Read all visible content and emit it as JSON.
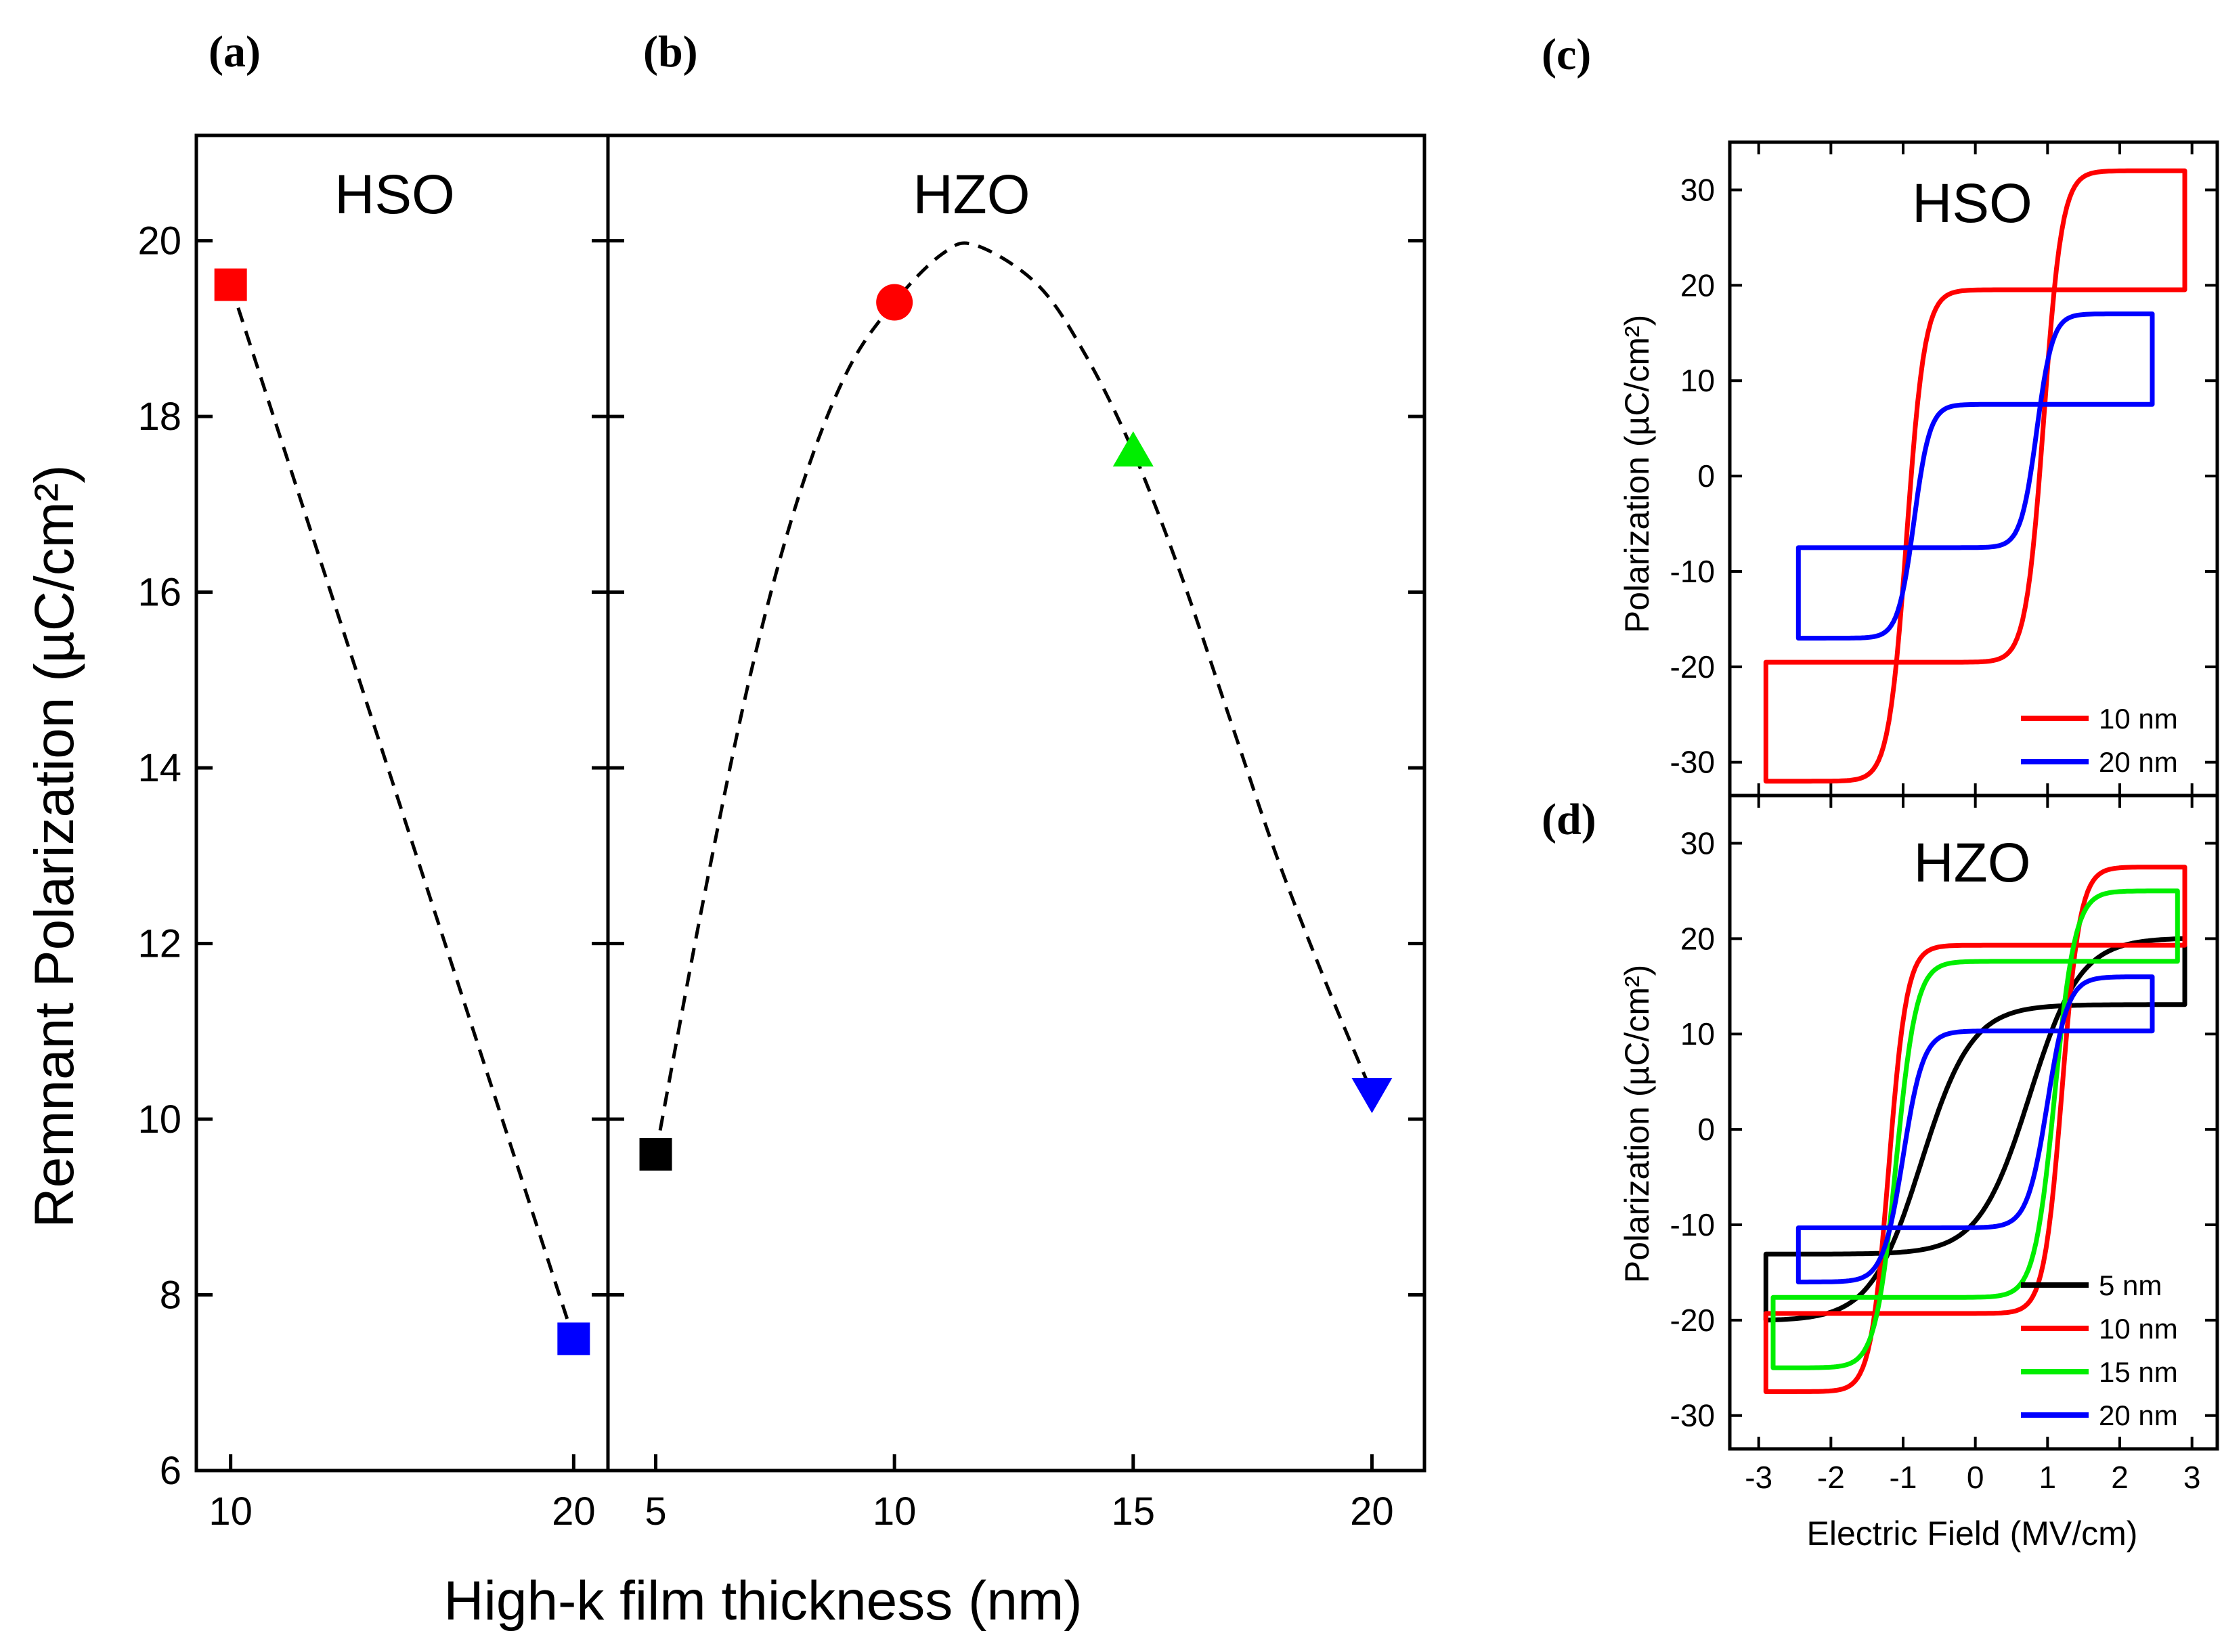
{
  "chart_data": [
    {
      "panel_label": "(a)",
      "type": "scatter",
      "title": "HSO",
      "x": [
        10,
        20
      ],
      "y": [
        19.5,
        7.5
      ],
      "marker_colors": [
        "#ff0000",
        "#0000ff"
      ],
      "marker_shapes": [
        "square",
        "square"
      ],
      "fit_curve": {
        "style": "dashed",
        "x": [
          10,
          20
        ],
        "y": [
          19.5,
          7.5
        ]
      },
      "ylabel": "Remnant Polarization (µC/cm²)",
      "xlabel": "High-k film thickness (nm)",
      "ylim": [
        6,
        21.2
      ],
      "xlim": [
        9,
        21
      ],
      "xticks": [
        "10",
        "20"
      ],
      "yticks": [
        "6",
        "8",
        "10",
        "12",
        "14",
        "16",
        "18",
        "20"
      ]
    },
    {
      "panel_label": "(b)",
      "type": "scatter",
      "title": "HZO",
      "x": [
        5,
        10,
        15,
        20
      ],
      "y": [
        9.6,
        19.3,
        17.6,
        10.3
      ],
      "marker_colors": [
        "#000000",
        "#ff0000",
        "#00ee00",
        "#0000ff"
      ],
      "marker_shapes": [
        "square",
        "circle",
        "triangle-up",
        "triangle-down"
      ],
      "fit_curve": {
        "style": "dashed",
        "x": [
          5,
          6,
          7,
          8,
          9,
          10,
          11,
          11.7,
          13,
          14,
          15,
          16,
          17,
          18,
          19,
          20
        ],
        "y": [
          9.6,
          12.5,
          15.1,
          17.1,
          18.5,
          19.3,
          19.85,
          19.95,
          19.5,
          18.7,
          17.6,
          16.2,
          14.6,
          13.0,
          11.6,
          10.3
        ]
      },
      "xlabel": "High-k film thickness (nm)",
      "ylim": [
        6,
        21.2
      ],
      "xlim": [
        4,
        21.1
      ],
      "xticks": [
        "5",
        "10",
        "15",
        "20"
      ]
    },
    {
      "panel_label": "(c)",
      "type": "line",
      "title": "HSO",
      "ylabel": "Polarization (µC/cm²)",
      "xlim": [
        -3.4,
        3.35
      ],
      "ylim": [
        -33.5,
        35
      ],
      "yticks": [
        "-30",
        "-20",
        "-10",
        "0",
        "10",
        "20",
        "30"
      ],
      "series": [
        {
          "name": "10 nm",
          "color": "#ff0000",
          "ps": 32,
          "pr": 19.5,
          "ec": 0.95,
          "w": 0.25,
          "emax": 2.9
        },
        {
          "name": "20 nm",
          "color": "#0000ff",
          "ps": 17,
          "pr": 7.5,
          "ec": 0.85,
          "w": 0.22,
          "emax": 2.45
        }
      ]
    },
    {
      "panel_label": "(d)",
      "type": "line",
      "title": "HZO",
      "ylabel": "Polarization (µC/cm²)",
      "xlabel": "Electric Field (MV/cm)",
      "xlim": [
        -3.4,
        3.35
      ],
      "ylim": [
        -33.5,
        35
      ],
      "xticks": [
        "-3",
        "-2",
        "-1",
        "0",
        "1",
        "2",
        "3"
      ],
      "yticks": [
        "-30",
        "-20",
        "-10",
        "0",
        "10",
        "20",
        "30"
      ],
      "series": [
        {
          "name": "5 nm",
          "color": "#000000",
          "ps": 20,
          "pr": 9.6,
          "ec": 0.75,
          "w": 0.7,
          "emax": 2.9
        },
        {
          "name": "10 nm",
          "color": "#ff0000",
          "ps": 27.5,
          "pr": 19.3,
          "ec": 1.2,
          "w": 0.25,
          "emax": 2.9
        },
        {
          "name": "15 nm",
          "color": "#00ee00",
          "ps": 25,
          "pr": 17.6,
          "ec": 1.1,
          "w": 0.28,
          "emax": 2.8
        },
        {
          "name": "20 nm",
          "color": "#0000ff",
          "ps": 16,
          "pr": 10.3,
          "ec": 1.0,
          "w": 0.28,
          "emax": 2.45
        }
      ]
    }
  ]
}
